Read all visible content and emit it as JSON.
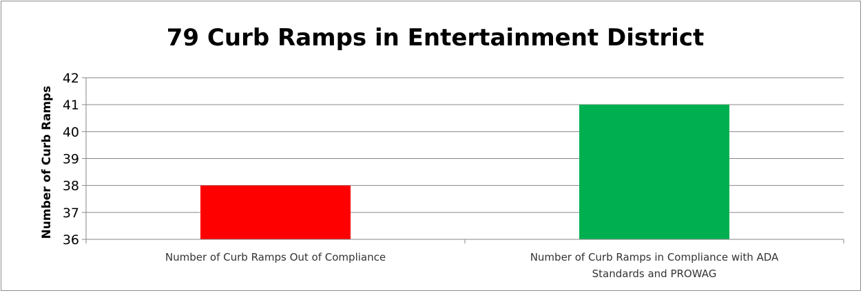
{
  "chart_data": {
    "type": "bar",
    "title": "79 Curb Ramps in Entertainment District",
    "xlabel": "",
    "ylabel": "Number of Curb Ramps",
    "categories": [
      "Number of Curb Ramps Out of Compliance",
      "Number of Curb Ramps in Compliance with ADA Standards and PROWAG"
    ],
    "category_lines": [
      [
        "Number of Curb Ramps Out of Compliance"
      ],
      [
        "Number of Curb Ramps in Compliance with ADA",
        "Standards and PROWAG"
      ]
    ],
    "values": [
      38,
      41
    ],
    "colors": [
      "#ff0000",
      "#00b050"
    ],
    "ylim": [
      36,
      42
    ],
    "yticks": [
      "36",
      "37",
      "38",
      "39",
      "40",
      "41",
      "42"
    ],
    "grid": true,
    "legend": "none"
  }
}
